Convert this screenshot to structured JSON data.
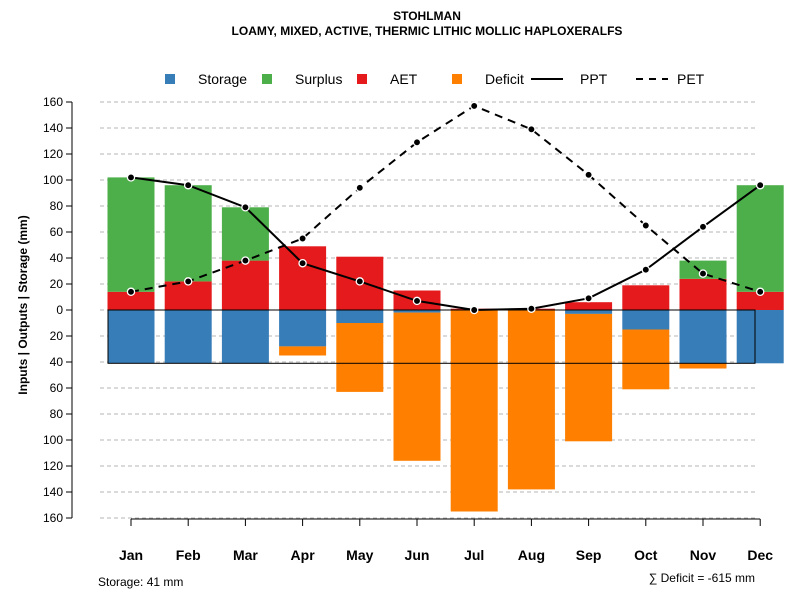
{
  "chart_data": {
    "type": "bar",
    "title": "STOHLMAN",
    "subtitle": "LOAMY, MIXED, ACTIVE, THERMIC LITHIC MOLLIC HAPLOXERALFS",
    "ylabel": "Inputs | Outputs | Storage    (mm)",
    "ylim": [
      -160,
      160
    ],
    "yticks": [
      160,
      140,
      120,
      100,
      80,
      60,
      40,
      20,
      0,
      20,
      40,
      60,
      80,
      100,
      120,
      140,
      160
    ],
    "categories": [
      "Jan",
      "Feb",
      "Mar",
      "Apr",
      "May",
      "Jun",
      "Jul",
      "Aug",
      "Sep",
      "Oct",
      "Nov",
      "Dec"
    ],
    "series": [
      {
        "name": "Storage",
        "color": "#377EB8",
        "values": [
          -41,
          -41,
          -41,
          -28,
          -10,
          -2,
          0,
          0,
          -3,
          -15,
          -41,
          -41
        ]
      },
      {
        "name": "Surplus",
        "color": "#4DAF4A",
        "values": [
          88,
          74,
          41,
          0,
          0,
          0,
          0,
          0,
          0,
          0,
          14,
          82
        ]
      },
      {
        "name": "AET",
        "color": "#E41A1C",
        "values": [
          14,
          22,
          38,
          49,
          41,
          15,
          1,
          1,
          6,
          19,
          24,
          14
        ]
      },
      {
        "name": "Deficit",
        "color": "#FF7F00",
        "values": [
          0,
          0,
          0,
          -7,
          -53,
          -114,
          -155,
          -138,
          -98,
          -46,
          -4,
          0
        ]
      },
      {
        "name": "PPT",
        "style": "solid",
        "values": [
          102,
          96,
          79,
          36,
          22,
          7,
          0,
          1,
          9,
          31,
          64,
          96
        ]
      },
      {
        "name": "PET",
        "style": "dashed",
        "values": [
          14,
          22,
          38,
          55,
          94,
          129,
          157,
          139,
          104,
          65,
          28,
          14
        ]
      }
    ],
    "legend": [
      {
        "label": "Storage",
        "kind": "square",
        "color": "#377EB8"
      },
      {
        "label": "Surplus",
        "kind": "square",
        "color": "#4DAF4A"
      },
      {
        "label": "AET",
        "kind": "square",
        "color": "#E41A1C"
      },
      {
        "label": "Deficit",
        "kind": "square",
        "color": "#FF7F00"
      },
      {
        "label": "PPT",
        "kind": "line-solid",
        "color": "#000000"
      },
      {
        "label": "PET",
        "kind": "line-dashed",
        "color": "#000000"
      }
    ],
    "legend_position": "top",
    "grid": true,
    "storage_capacity": 41,
    "storage_note": "Storage: 41 mm",
    "deficit_note": "∑ Deficit = -615 mm"
  }
}
